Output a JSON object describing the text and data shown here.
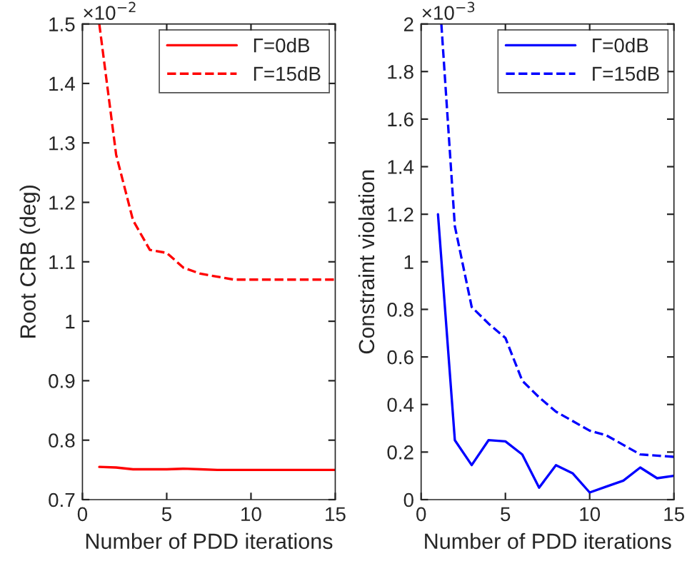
{
  "chart_data": [
    {
      "type": "line",
      "xlabel": "Number of PDD iterations",
      "ylabel": "Root CRB (deg)",
      "annotations": [
        "×10$^{−2}$"
      ],
      "xlim": [
        0,
        15
      ],
      "xticks": [
        0,
        5,
        10,
        15
      ],
      "ylim": [
        0.7,
        1.5
      ],
      "yticks": [
        0.7,
        0.8,
        0.9,
        1,
        1.1,
        1.2,
        1.3,
        1.4,
        1.5
      ],
      "legend": "top right",
      "grid": false,
      "series": [
        {
          "name": "Γ=0dB",
          "color": "#ff0000",
          "line_style": "solid",
          "x": [
            1,
            2,
            3,
            4,
            5,
            6,
            7,
            8,
            9,
            10,
            11,
            12,
            13,
            14,
            15
          ],
          "values": [
            0.755,
            0.754,
            0.751,
            0.751,
            0.751,
            0.752,
            0.751,
            0.75,
            0.75,
            0.75,
            0.75,
            0.75,
            0.75,
            0.75,
            0.75
          ]
        },
        {
          "name": "Γ=15dB",
          "color": "#ff0000",
          "line_style": "dashed",
          "x": [
            1,
            2,
            3,
            4,
            5,
            6,
            7,
            8,
            9,
            10,
            11,
            12,
            13,
            14,
            15
          ],
          "values": [
            1.5,
            1.28,
            1.17,
            1.12,
            1.115,
            1.09,
            1.08,
            1.075,
            1.07,
            1.07,
            1.07,
            1.07,
            1.07,
            1.07,
            1.07
          ]
        }
      ]
    },
    {
      "type": "line",
      "xlabel": "Number of PDD iterations",
      "ylabel": "Constraint violation",
      "annotations": [
        "×10$^{−3}$"
      ],
      "xlim": [
        0,
        15
      ],
      "xticks": [
        0,
        5,
        10,
        15
      ],
      "ylim": [
        0,
        2
      ],
      "yticks": [
        0,
        0.2,
        0.4,
        0.6,
        0.8,
        1,
        1.2,
        1.4,
        1.6,
        1.8,
        2
      ],
      "legend": "top right",
      "grid": false,
      "series": [
        {
          "name": "Γ=0dB",
          "color": "#0000ff",
          "line_style": "solid",
          "x": [
            1,
            2,
            3,
            4,
            5,
            6,
            7,
            8,
            9,
            10,
            11,
            12,
            13,
            14,
            15
          ],
          "values": [
            1.2,
            0.25,
            0.145,
            0.25,
            0.245,
            0.19,
            0.05,
            0.145,
            0.11,
            0.03,
            0.055,
            0.08,
            0.135,
            0.09,
            0.1
          ]
        },
        {
          "name": "Γ=15dB",
          "color": "#0000ff",
          "line_style": "dashed",
          "x": [
            1.2,
            2,
            3,
            4,
            5,
            6,
            7,
            8,
            9,
            10,
            11,
            12,
            13,
            14,
            15
          ],
          "values": [
            2,
            1.15,
            0.81,
            0.74,
            0.68,
            0.5,
            0.43,
            0.37,
            0.33,
            0.29,
            0.27,
            0.23,
            0.19,
            0.185,
            0.18
          ]
        }
      ]
    }
  ]
}
